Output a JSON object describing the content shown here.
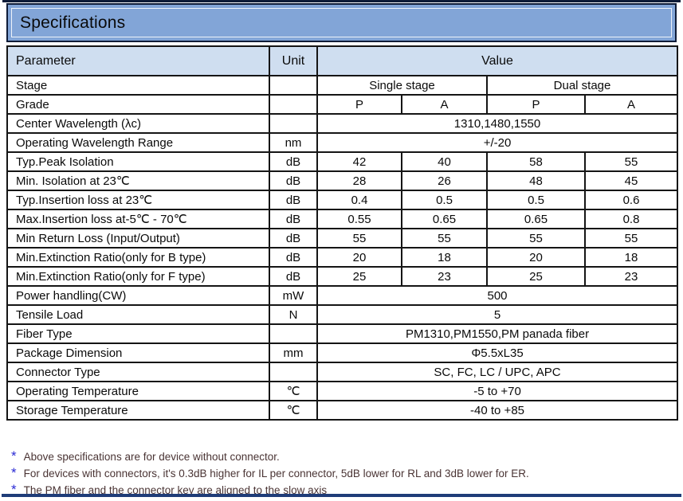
{
  "title": "Specifications",
  "colors": {
    "title_bar_blue": "#82a5d7",
    "header_row_blue": "#cfdef0",
    "frame_navy": "#0e1c38",
    "bottom_line_navy": "#1f3c78",
    "note_text_color": "#4a3434",
    "asterisk_blue": "#2a2ad4"
  },
  "table": {
    "header": {
      "parameter": "Parameter",
      "unit": "Unit",
      "value": "Value"
    },
    "rows": [
      {
        "cells": [
          {
            "t": "Stage"
          },
          {
            "t": ""
          },
          {
            "t": "Single stage",
            "cs": 2
          },
          {
            "t": "Dual stage",
            "cs": 2
          }
        ]
      },
      {
        "cells": [
          {
            "t": "Grade"
          },
          {
            "t": ""
          },
          {
            "t": "P"
          },
          {
            "t": "A"
          },
          {
            "t": "P"
          },
          {
            "t": "A"
          }
        ]
      },
      {
        "cells": [
          {
            "t": "Center Wavelength (λc)"
          },
          {
            "t": ""
          },
          {
            "t": "1310,1480,1550",
            "cs": 4
          }
        ]
      },
      {
        "cells": [
          {
            "t": "Operating Wavelength Range"
          },
          {
            "t": "nm"
          },
          {
            "t": "+/-20",
            "cs": 4
          }
        ]
      },
      {
        "cells": [
          {
            "t": "Typ.Peak Isolation"
          },
          {
            "t": "dB"
          },
          {
            "t": "42"
          },
          {
            "t": "40"
          },
          {
            "t": "58"
          },
          {
            "t": "55"
          }
        ]
      },
      {
        "cells": [
          {
            "t": "Min. Isolation at 23℃"
          },
          {
            "t": "dB"
          },
          {
            "t": "28"
          },
          {
            "t": "26"
          },
          {
            "t": "48"
          },
          {
            "t": "45"
          }
        ]
      },
      {
        "cells": [
          {
            "t": "Typ.Insertion loss at 23℃"
          },
          {
            "t": "dB"
          },
          {
            "t": "0.4"
          },
          {
            "t": "0.5"
          },
          {
            "t": "0.5"
          },
          {
            "t": "0.6"
          }
        ]
      },
      {
        "cells": [
          {
            "t": "Max.Insertion loss at-5℃ - 70℃"
          },
          {
            "t": "dB"
          },
          {
            "t": "0.55"
          },
          {
            "t": "0.65"
          },
          {
            "t": "0.65"
          },
          {
            "t": "0.8"
          }
        ]
      },
      {
        "cells": [
          {
            "t": "Min Return Loss (Input/Output)"
          },
          {
            "t": "dB"
          },
          {
            "t": "55"
          },
          {
            "t": "55"
          },
          {
            "t": "55"
          },
          {
            "t": "55"
          }
        ]
      },
      {
        "cells": [
          {
            "t": "Min.Extinction Ratio(only for B type)"
          },
          {
            "t": "dB"
          },
          {
            "t": "20"
          },
          {
            "t": "18"
          },
          {
            "t": "20"
          },
          {
            "t": "18"
          }
        ]
      },
      {
        "cells": [
          {
            "t": "Min.Extinction Ratio(only for F type)"
          },
          {
            "t": "dB"
          },
          {
            "t": "25"
          },
          {
            "t": "23"
          },
          {
            "t": "25"
          },
          {
            "t": "23"
          }
        ]
      },
      {
        "cells": [
          {
            "t": "Power handling(CW)"
          },
          {
            "t": "mW"
          },
          {
            "t": "500",
            "cs": 4
          }
        ]
      },
      {
        "cells": [
          {
            "t": "Tensile Load"
          },
          {
            "t": "N"
          },
          {
            "t": "5",
            "cs": 4
          }
        ]
      },
      {
        "cells": [
          {
            "t": "Fiber Type"
          },
          {
            "t": ""
          },
          {
            "t": "PM1310,PM1550,PM panada fiber",
            "cs": 4
          }
        ]
      },
      {
        "cells": [
          {
            "t": "Package Dimension"
          },
          {
            "t": "mm"
          },
          {
            "t": "Φ5.5xL35",
            "cs": 4
          }
        ]
      },
      {
        "cells": [
          {
            "t": "Connector Type"
          },
          {
            "t": ""
          },
          {
            "t": "SC, FC, LC / UPC, APC",
            "cs": 4
          }
        ]
      },
      {
        "cells": [
          {
            "t": "Operating Temperature"
          },
          {
            "t": "℃"
          },
          {
            "t": "-5 to +70",
            "cs": 4
          }
        ]
      },
      {
        "cells": [
          {
            "t": "Storage Temperature"
          },
          {
            "t": "℃"
          },
          {
            "t": "-40 to +85",
            "cs": 4
          }
        ]
      }
    ]
  },
  "notes": {
    "marker": "*",
    "items": [
      "Above specifications are for device without connector.",
      "For devices with connectors, it's 0.3dB higher for IL per connector, 5dB lower for RL and 3dB lower for ER.",
      "The PM fiber and the connector key are aligned to the slow axis"
    ]
  }
}
